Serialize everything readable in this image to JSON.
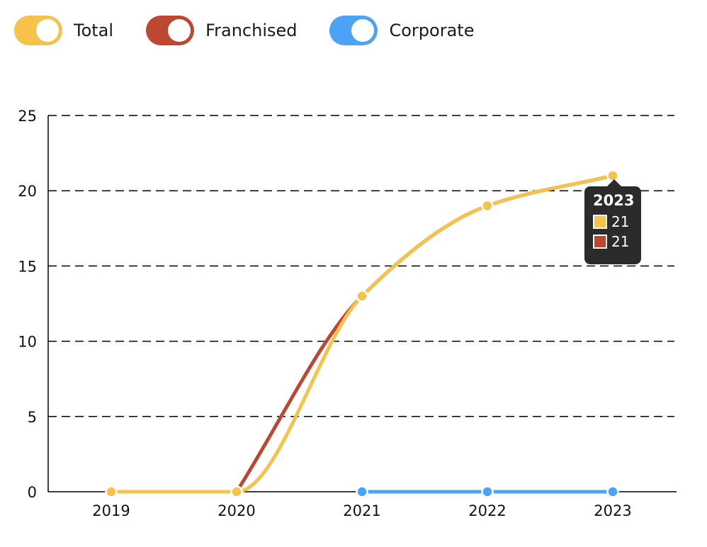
{
  "legend": [
    {
      "label": "Total",
      "color": "#F5C24C"
    },
    {
      "label": "Franchised",
      "color": "#BC4832"
    },
    {
      "label": "Corporate",
      "color": "#4CA2F5"
    }
  ],
  "tooltip": {
    "title": "2023",
    "rows": [
      {
        "value": "21",
        "color": "#F5C24C"
      },
      {
        "value": "21",
        "color": "#BC4832"
      }
    ]
  },
  "chart_data": {
    "type": "line",
    "categories": [
      "2019",
      "2020",
      "2021",
      "2022",
      "2023"
    ],
    "ylim": [
      0,
      25
    ],
    "yticks": [
      0,
      5,
      10,
      15,
      20,
      25
    ],
    "grid": true,
    "legend_position": "top-left",
    "series": [
      {
        "name": "Total",
        "color": "#F5C24C",
        "values": [
          0,
          0,
          13,
          19,
          21
        ]
      },
      {
        "name": "Franchised",
        "color": "#BC4832",
        "values": [
          null,
          0,
          13,
          19,
          21
        ]
      },
      {
        "name": "Corporate",
        "color": "#4CA2F5",
        "values": [
          null,
          null,
          0,
          0,
          0
        ]
      }
    ]
  }
}
